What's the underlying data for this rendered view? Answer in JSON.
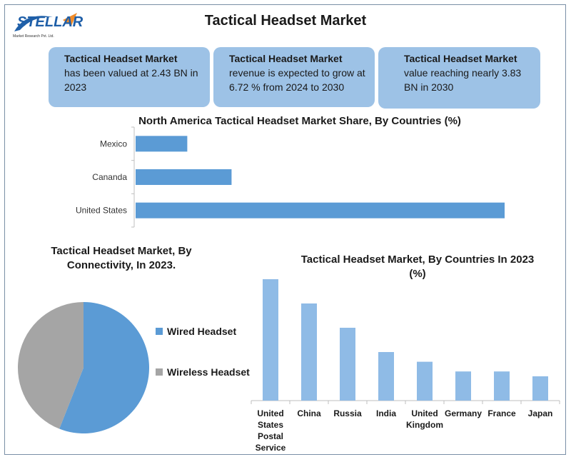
{
  "logo": {
    "name": "STELLAR",
    "tagline": "Market Research Pvt. Ltd."
  },
  "header": {
    "title": "Tactical Headset Market"
  },
  "cards": [
    {
      "title": "Tactical Headset Market",
      "body": "has been valued at 2.43 BN in 2023"
    },
    {
      "title": "Tactical Headset Market",
      "body": "revenue is expected to grow at 6.72 % from 2024 to 2030"
    },
    {
      "title": "Tactical Headset Market",
      "body": "value reaching nearly 3.83 BN in 2030"
    }
  ],
  "colors": {
    "bar_blue": "#5b9bd5",
    "bar_light": "#8fbbe6",
    "card_bg": "#9dc2e6",
    "gray": "#a5a5a5",
    "frame": "#7a8fa6"
  },
  "chart_data": [
    {
      "type": "bar",
      "orientation": "horizontal",
      "title": "North America Tactical Headset Market Share, By Countries (%)",
      "categories": [
        "Mexico",
        "Cananda",
        "United States"
      ],
      "values": [
        14,
        26,
        100
      ],
      "xlim": [
        0,
        100
      ],
      "grid": false
    },
    {
      "type": "pie",
      "title": "Tactical Headset Market, By Connectivity, In 2023.",
      "categories": [
        "Wired Headset",
        "Wireless Headset"
      ],
      "values": [
        56,
        44
      ],
      "legend": "right"
    },
    {
      "type": "bar",
      "orientation": "vertical",
      "title": "Tactical Headset Market, By Countries In 2023 (%)",
      "categories": [
        "United States Postal Service",
        "China",
        "Russia",
        "India",
        "United Kingdom",
        "Germany",
        "France",
        "Japan"
      ],
      "category_lines": [
        [
          "United",
          "States",
          "Postal",
          "Service"
        ],
        [
          "China"
        ],
        [
          "Russia"
        ],
        [
          "India"
        ],
        [
          "United",
          "Kingdom"
        ],
        [
          "Germany"
        ],
        [
          "France"
        ],
        [
          "Japan"
        ]
      ],
      "values": [
        25,
        20,
        15,
        10,
        8,
        6,
        6,
        5
      ],
      "ylim": [
        0,
        25
      ],
      "grid": false
    }
  ]
}
